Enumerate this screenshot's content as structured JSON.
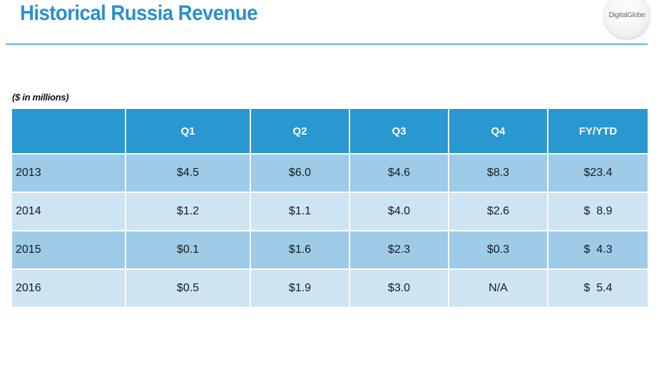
{
  "title": "Historical Russia Revenue",
  "logo_text": "DigitalGlobe",
  "units_note": "($ in millions)",
  "colors": {
    "title": "#2a8fd0",
    "rule": "#5bb7e4",
    "header_bg": "#2a98d0",
    "row_dark": "#9dcbe8",
    "row_light": "#cfe4f3"
  },
  "table": {
    "columns": [
      "",
      "Q1",
      "Q2",
      "Q3",
      "Q4",
      "FY/YTD"
    ],
    "rows": [
      [
        "2013",
        "$4.5",
        "$6.0",
        "$4.6",
        "$8.3",
        "$23.4"
      ],
      [
        "2014",
        "$1.2",
        "$1.1",
        "$4.0",
        "$2.6",
        "$  8.9"
      ],
      [
        "2015",
        "$0.1",
        "$1.6",
        "$2.3",
        "$0.3",
        "$  4.3"
      ],
      [
        "2016",
        "$0.5",
        "$1.9",
        "$3.0",
        "N/A",
        "$  5.4"
      ]
    ]
  }
}
